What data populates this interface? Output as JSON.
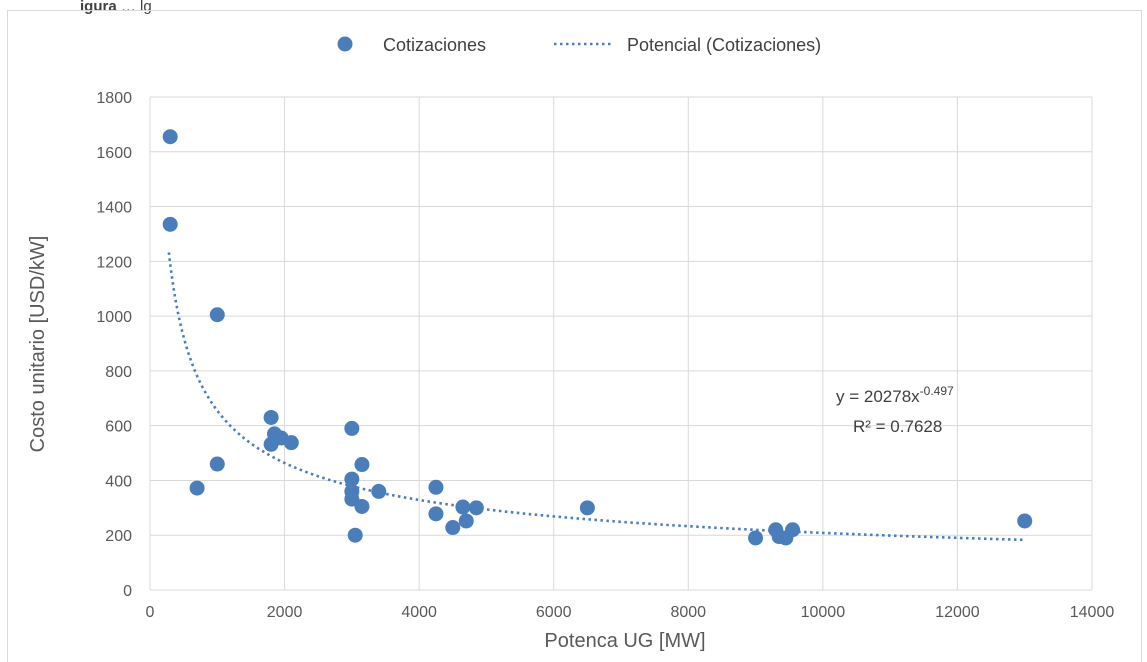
{
  "caption": {
    "bold_part": "igura",
    "rest": " … lg"
  },
  "chart_data": {
    "type": "scatter",
    "xlabel": "Potenca UG [MW]",
    "ylabel": "Costo unitario [USD/kW]",
    "xlim": [
      0,
      14000
    ],
    "ylim": [
      0,
      1800
    ],
    "x_ticks": [
      0,
      2000,
      4000,
      6000,
      8000,
      10000,
      12000,
      14000
    ],
    "y_ticks": [
      0,
      200,
      400,
      600,
      800,
      1000,
      1200,
      1400,
      1600,
      1800
    ],
    "grid": true,
    "legend_position": "top",
    "series": [
      {
        "name": "Cotizaciones",
        "color": "#4a7ebb",
        "points": [
          [
            300,
            1655
          ],
          [
            300,
            1335
          ],
          [
            1000,
            1005
          ],
          [
            1000,
            460
          ],
          [
            700,
            372
          ],
          [
            1800,
            630
          ],
          [
            1800,
            532
          ],
          [
            1850,
            570
          ],
          [
            1950,
            555
          ],
          [
            2100,
            538
          ],
          [
            3000,
            590
          ],
          [
            3000,
            405
          ],
          [
            3000,
            360
          ],
          [
            3000,
            332
          ],
          [
            3150,
            458
          ],
          [
            3150,
            305
          ],
          [
            3050,
            200
          ],
          [
            3400,
            360
          ],
          [
            4250,
            375
          ],
          [
            4250,
            278
          ],
          [
            4650,
            303
          ],
          [
            4700,
            252
          ],
          [
            4850,
            300
          ],
          [
            4500,
            228
          ],
          [
            6500,
            300
          ],
          [
            9000,
            190
          ],
          [
            9300,
            220
          ],
          [
            9350,
            195
          ],
          [
            9450,
            190
          ],
          [
            9550,
            220
          ],
          [
            13000,
            252
          ]
        ]
      }
    ],
    "trendline": {
      "name": "Potencial (Cotizaciones)",
      "type": "power",
      "a": 20278,
      "b": -0.497,
      "x_range": [
        280,
        13000
      ],
      "color": "#4a7ebb",
      "equation_base": "y = 20278x",
      "equation_exp": "-0.497",
      "r2_label": "R² = 0.7628"
    }
  }
}
